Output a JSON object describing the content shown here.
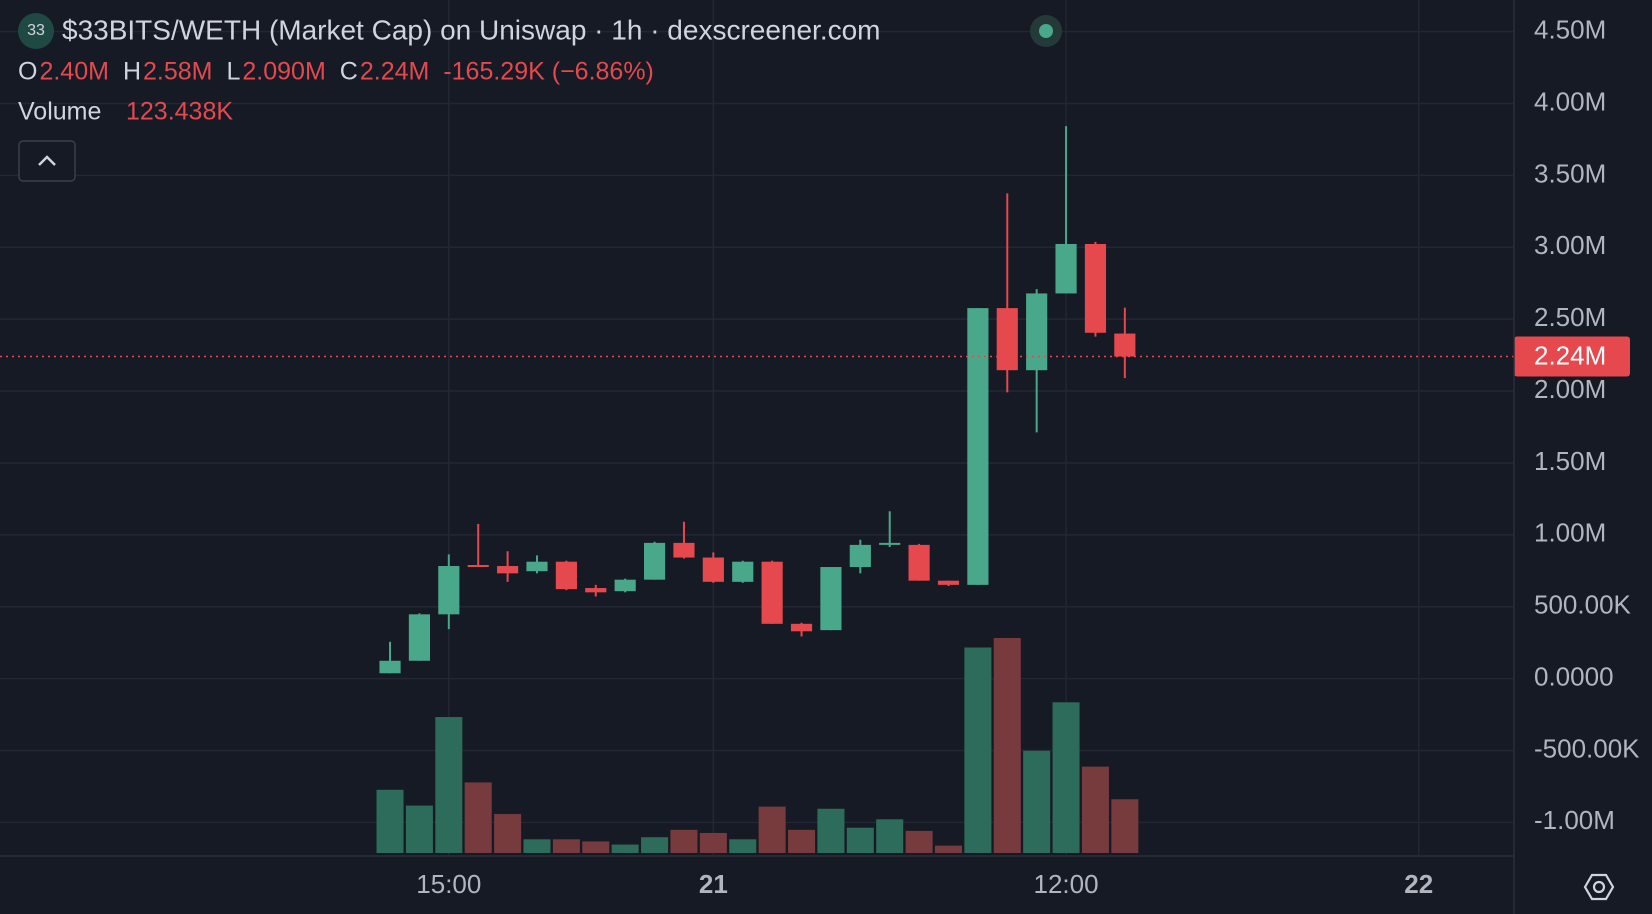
{
  "chart_data": {
    "type": "candlestick",
    "logo": "33",
    "title": "$33BITS/WETH (Market Cap) on Uniswap · 1h · dexscreener.com",
    "ohlc_legend": [
      {
        "key": "O",
        "text": "2.40M"
      },
      {
        "key": "H",
        "text": "2.58M"
      },
      {
        "key": "L",
        "text": "2.090M"
      },
      {
        "key": "C",
        "text": "2.24M"
      }
    ],
    "change": "-165.29K (−6.86%)",
    "volume_name": "Volume",
    "volume_text": "123.438K",
    "x": [
      13,
      14,
      15,
      16,
      17,
      18,
      19,
      20,
      21,
      22,
      23,
      24,
      25,
      26,
      27,
      28,
      29,
      30,
      31,
      32,
      33,
      34,
      35,
      36,
      37,
      38
    ],
    "open": [
      37000,
      124000,
      447000,
      790000,
      783000,
      747000,
      813000,
      630000,
      608000,
      688000,
      944000,
      842000,
      673000,
      813000,
      381000,
      337000,
      776000,
      930000,
      930000,
      681000,
      652000,
      2577000,
      2145000,
      2679000,
      3023000,
      2400000
    ],
    "high": [
      256000,
      454000,
      864000,
      1076000,
      886000,
      857000,
      820000,
      652000,
      695000,
      952000,
      1091000,
      878000,
      820000,
      820000,
      388000,
      776000,
      966000,
      1164000,
      937000,
      681000,
      2577000,
      3375000,
      2709000,
      3843000,
      3038000,
      2580000
    ],
    "low": [
      37000,
      124000,
      344000,
      776000,
      673000,
      732000,
      615000,
      571000,
      600000,
      688000,
      835000,
      666000,
      666000,
      381000,
      293000,
      337000,
      732000,
      915000,
      681000,
      644000,
      652000,
      1991000,
      1713000,
      2679000,
      2379000,
      2090000
    ],
    "close": [
      124000,
      447000,
      783000,
      776000,
      732000,
      813000,
      622000,
      600000,
      688000,
      944000,
      842000,
      673000,
      813000,
      381000,
      329000,
      776000,
      930000,
      944000,
      681000,
      652000,
      2577000,
      2145000,
      2679000,
      3023000,
      2405290,
      2240000
    ],
    "volume": [
      145200,
      108900,
      312200,
      162100,
      89500,
      31500,
      31500,
      26600,
      19400,
      36300,
      53200,
      46000,
      31500,
      106500,
      53200,
      101600,
      58100,
      77400,
      50800,
      16900,
      471900,
      493700,
      234700,
      346100,
      198400,
      123438
    ],
    "up_color": "#4aa88a",
    "down_color": "#e5484d",
    "up_volume_color": "#2d6b5a",
    "down_volume_color": "#773a3d",
    "xlim": [
      -0.27,
      51.24
    ],
    "xticks": [
      {
        "value": 15,
        "label": "15:00"
      },
      {
        "value": 24,
        "label": "21"
      },
      {
        "value": 36,
        "label": "12:00"
      },
      {
        "value": 48,
        "label": "22"
      }
    ],
    "ylim": [
      -1227000,
      4720000
    ],
    "yticks": [
      {
        "value": 4500000,
        "label": "4.50M"
      },
      {
        "value": 4000000,
        "label": "4.00M"
      },
      {
        "value": 3500000,
        "label": "3.50M"
      },
      {
        "value": 3000000,
        "label": "3.00M"
      },
      {
        "value": 2500000,
        "label": "2.50M"
      },
      {
        "value": 2000000,
        "label": "2.00M"
      },
      {
        "value": 1500000,
        "label": "1.50M"
      },
      {
        "value": 1000000,
        "label": "1.00M"
      },
      {
        "value": 500000,
        "label": "500.00K"
      },
      {
        "value": 0,
        "label": "0.0000"
      },
      {
        "value": -500000,
        "label": "-500.00K"
      },
      {
        "value": -1000000,
        "label": "-1.00M"
      }
    ],
    "grid": true
  }
}
